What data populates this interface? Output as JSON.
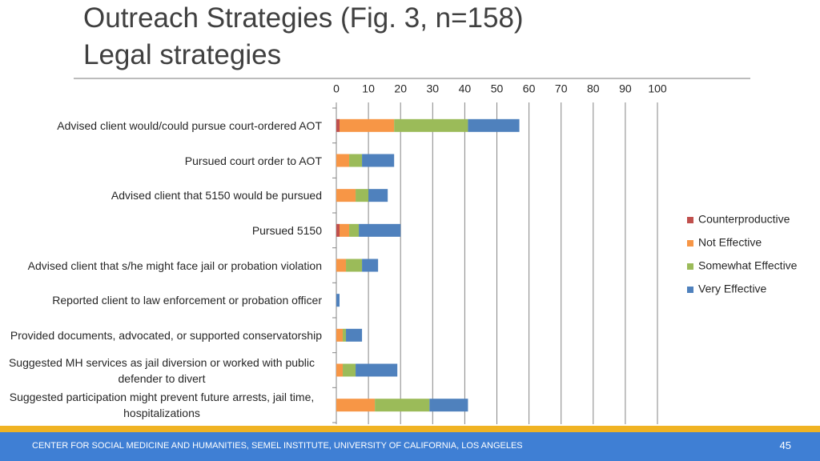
{
  "chart_data": {
    "type": "bar",
    "orientation": "horizontal",
    "stacked": true,
    "title": "Outreach Strategies (Fig. 3, n=158)",
    "subtitle": "Legal strategies",
    "categories": [
      "Advised client would/could pursue court-ordered AOT",
      "Pursued court order to AOT",
      "Advised client that 5150 would be pursued",
      "Pursued 5150",
      "Advised client that s/he might face jail or probation violation",
      "Reported client to law enforcement or probation officer",
      "Provided documents, advocated, or supported conservatorship",
      "Suggested MH services as jail diversion or worked with public defender to divert",
      "Suggested participation might prevent future arrests, jail time, hospitalizations"
    ],
    "series": [
      {
        "name": "Counterproductive",
        "color": "#c0504d",
        "values": [
          1,
          0,
          0,
          1,
          0,
          0,
          0,
          0,
          0
        ]
      },
      {
        "name": "Not Effective",
        "color": "#f79646",
        "values": [
          17,
          4,
          6,
          3,
          3,
          0,
          2,
          2,
          12
        ]
      },
      {
        "name": "Somewhat Effective",
        "color": "#9bbb59",
        "values": [
          23,
          4,
          4,
          3,
          5,
          0,
          1,
          4,
          17
        ]
      },
      {
        "name": "Very Effective",
        "color": "#4f81bd",
        "values": [
          16,
          10,
          6,
          13,
          5,
          1,
          5,
          13,
          12
        ]
      }
    ],
    "xlim": [
      0,
      100
    ],
    "xticks": [
      0,
      10,
      20,
      30,
      40,
      50,
      60,
      70,
      80,
      90,
      100
    ],
    "grid": true,
    "legend": "right"
  },
  "footer": "CENTER FOR SOCIAL MEDICINE AND HUMANITIES, SEMEL INSTITUTE, UNIVERSITY OF CALIFORNIA, LOS ANGELES",
  "page_number": "45"
}
